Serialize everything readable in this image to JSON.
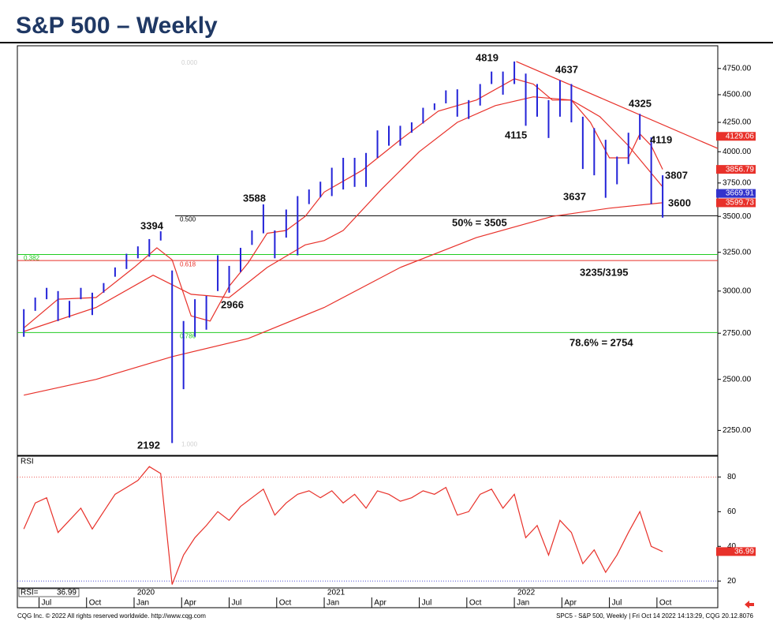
{
  "chart_data": [
    {
      "type": "hilo",
      "title": "S&P 500 – Weekly",
      "log_scale": true,
      "color": "#2323d8",
      "x": [
        2019.42,
        2019.48,
        2019.54,
        2019.6,
        2019.66,
        2019.72,
        2019.78,
        2019.84,
        2019.9,
        2019.96,
        2020.02,
        2020.08,
        2020.14,
        2020.2,
        2020.26,
        2020.32,
        2020.38,
        2020.44,
        2020.5,
        2020.56,
        2020.62,
        2020.68,
        2020.74,
        2020.8,
        2020.86,
        2020.92,
        2020.98,
        2021.04,
        2021.1,
        2021.16,
        2021.22,
        2021.28,
        2021.34,
        2021.4,
        2021.46,
        2021.52,
        2021.58,
        2021.64,
        2021.7,
        2021.76,
        2021.82,
        2021.88,
        2021.94,
        2022.0,
        2022.06,
        2022.12,
        2022.18,
        2022.24,
        2022.3,
        2022.36,
        2022.42,
        2022.48,
        2022.54,
        2022.6,
        2022.66,
        2022.72,
        2022.78
      ],
      "high": [
        2890,
        2960,
        3020,
        3000,
        2940,
        3020,
        2990,
        3050,
        3150,
        3240,
        3290,
        3340,
        3394,
        3130,
        2820,
        2950,
        2970,
        3230,
        3160,
        3280,
        3400,
        3588,
        3400,
        3550,
        3650,
        3700,
        3760,
        3870,
        3950,
        3950,
        3990,
        4180,
        4220,
        4220,
        4250,
        4380,
        4420,
        4540,
        4550,
        4450,
        4600,
        4720,
        4720,
        4819,
        4700,
        4600,
        4450,
        4637,
        4600,
        4300,
        4200,
        4100,
        3960,
        4160,
        4325,
        4120,
        3810
      ],
      "low": [
        2730,
        2880,
        2950,
        2820,
        2840,
        2950,
        2855,
        2990,
        3090,
        3140,
        3210,
        3220,
        3330,
        2192,
        2450,
        2730,
        2770,
        3000,
        2990,
        3120,
        3300,
        3380,
        3210,
        3350,
        3230,
        3590,
        3640,
        3650,
        3700,
        3720,
        3720,
        3950,
        4050,
        4050,
        4160,
        4240,
        4360,
        4420,
        4300,
        4280,
        4400,
        4600,
        4500,
        4600,
        4220,
        4300,
        4115,
        4300,
        4250,
        3860,
        3810,
        3637,
        3740,
        3900,
        4100,
        3590,
        3491
      ],
      "lines": [
        {
          "color": "#e8312a",
          "x": [
            2019.42,
            2019.6,
            2019.8,
            2020.0,
            2020.12,
            2020.2,
            2020.3,
            2020.4,
            2020.5,
            2020.6,
            2020.7,
            2020.8,
            2020.9,
            2021.0,
            2021.2,
            2021.4,
            2021.6,
            2021.8,
            2022.0,
            2022.1,
            2022.2,
            2022.3,
            2022.4,
            2022.5,
            2022.6,
            2022.66,
            2022.72,
            2022.78
          ],
          "values": [
            2780,
            2950,
            2960,
            3150,
            3280,
            3200,
            2850,
            2820,
            3030,
            3180,
            3380,
            3400,
            3500,
            3680,
            3850,
            4100,
            4350,
            4450,
            4650,
            4600,
            4450,
            4450,
            4250,
            3950,
            3950,
            4150,
            4050,
            3857
          ]
        },
        {
          "color": "#e8312a",
          "x": [
            2019.42,
            2019.8,
            2020.1,
            2020.3,
            2020.5,
            2020.7,
            2020.9,
            2021.0,
            2021.1,
            2021.3,
            2021.5,
            2021.7,
            2021.9,
            2022.1,
            2022.3,
            2022.45,
            2022.6,
            2022.78
          ],
          "values": [
            2760,
            2900,
            3100,
            2980,
            2960,
            3150,
            3300,
            3330,
            3400,
            3700,
            4000,
            4250,
            4400,
            4480,
            4450,
            4300,
            4050,
            3720
          ]
        },
        {
          "color": "#e8312a",
          "x": [
            2019.42,
            2019.8,
            2020.2,
            2020.6,
            2021.0,
            2021.4,
            2021.8,
            2022.2,
            2022.5,
            2022.78
          ],
          "values": [
            2420,
            2500,
            2620,
            2720,
            2900,
            3150,
            3350,
            3500,
            3560,
            3600
          ]
        },
        {
          "color": "#e8312a",
          "x": [
            2022.01,
            2023.07
          ],
          "values": [
            4819,
            4027
          ]
        }
      ],
      "levels": [
        {
          "value": 4819,
          "label": "0.000",
          "color": "#d0d0d0",
          "line": false
        },
        {
          "value": 3235,
          "label": "0.382",
          "color": "#22cc22",
          "line": true
        },
        {
          "value": 3505,
          "label": "0.500",
          "color": "#000000",
          "line": true
        },
        {
          "value": 3195,
          "label": "0.618",
          "color": "#e8312a",
          "line": true
        },
        {
          "value": 2754,
          "label": "0.786",
          "color": "#22cc22",
          "line": true
        },
        {
          "value": 2192,
          "label": "1.000",
          "color": "#d0d0d0",
          "line": false
        }
      ],
      "annotations": [
        "4819",
        "4637",
        "4325",
        "4115",
        "4119",
        "3807",
        "3600",
        "3637",
        "3588",
        "3394",
        "2966",
        "2192",
        "50% = 3505",
        "3235/3195",
        "78.6% = 2754"
      ],
      "price_tags": [
        {
          "value": 4129.06,
          "color": "#e8312a"
        },
        {
          "value": 3856.79,
          "color": "#e8312a"
        },
        {
          "value": 3669.91,
          "color": "#3333cc"
        },
        {
          "value": 3599.73,
          "color": "#e8312a"
        }
      ],
      "xlim": [
        2019.386,
        2023.07
      ],
      "ylim": [
        2137,
        4978
      ],
      "yticks": [
        {
          "value": 2250,
          "label": "2250.00"
        },
        {
          "value": 2500,
          "label": "2500.00"
        },
        {
          "value": 2750,
          "label": "2750.00"
        },
        {
          "value": 3000,
          "label": "3000.00"
        },
        {
          "value": 3250,
          "label": "3250.00"
        },
        {
          "value": 3500,
          "label": "3500.00"
        },
        {
          "value": 3750,
          "label": "3750.00"
        },
        {
          "value": 4000,
          "label": "4000.00"
        },
        {
          "value": 4250,
          "label": "4250.00"
        },
        {
          "value": 4500,
          "label": "4500.00"
        },
        {
          "value": 4750,
          "label": "4750.00"
        }
      ]
    },
    {
      "type": "line",
      "title": "RSI",
      "value_caption": "RSI=",
      "color": "#e8312a",
      "x": [
        2019.42,
        2019.48,
        2019.54,
        2019.6,
        2019.66,
        2019.72,
        2019.78,
        2019.84,
        2019.9,
        2019.96,
        2020.02,
        2020.08,
        2020.14,
        2020.2,
        2020.26,
        2020.32,
        2020.38,
        2020.44,
        2020.5,
        2020.56,
        2020.62,
        2020.68,
        2020.74,
        2020.8,
        2020.86,
        2020.92,
        2020.98,
        2021.04,
        2021.1,
        2021.16,
        2021.22,
        2021.28,
        2021.34,
        2021.4,
        2021.46,
        2021.52,
        2021.58,
        2021.64,
        2021.7,
        2021.76,
        2021.82,
        2021.88,
        2021.94,
        2022.0,
        2022.06,
        2022.12,
        2022.18,
        2022.24,
        2022.3,
        2022.36,
        2022.42,
        2022.48,
        2022.54,
        2022.6,
        2022.66,
        2022.72,
        2022.78
      ],
      "values": [
        50,
        65,
        68,
        48,
        55,
        62,
        50,
        60,
        70,
        74,
        78,
        86,
        82,
        18,
        35,
        45,
        52,
        60,
        55,
        63,
        68,
        73,
        58,
        65,
        70,
        72,
        68,
        72,
        65,
        70,
        62,
        72,
        70,
        66,
        68,
        72,
        70,
        74,
        58,
        60,
        70,
        73,
        62,
        70,
        45,
        52,
        35,
        55,
        48,
        30,
        38,
        25,
        35,
        48,
        60,
        40,
        36.99
      ],
      "ref_lines": [
        {
          "value": 80,
          "color": "#e8312a"
        },
        {
          "value": 20,
          "color": "#3333cc"
        }
      ],
      "xlim": [
        2019.386,
        2023.07
      ],
      "ylim": [
        16,
        92
      ],
      "yticks": [
        20,
        40,
        60,
        80
      ],
      "xticks": [
        {
          "value": 2019.5,
          "label": "Jul"
        },
        {
          "value": 2019.75,
          "label": "Oct"
        },
        {
          "value": 2020,
          "label": "Jan"
        },
        {
          "value": 2020.25,
          "label": "Apr"
        },
        {
          "value": 2020.5,
          "label": "Jul"
        },
        {
          "value": 2020.75,
          "label": "Oct"
        },
        {
          "value": 2021,
          "label": "Jan"
        },
        {
          "value": 2021.25,
          "label": "Apr"
        },
        {
          "value": 2021.5,
          "label": "Jul"
        },
        {
          "value": 2021.75,
          "label": "Oct"
        },
        {
          "value": 2022,
          "label": "Jan"
        },
        {
          "value": 2022.25,
          "label": "Apr"
        },
        {
          "value": 2022.5,
          "label": "Jul"
        },
        {
          "value": 2022.75,
          "label": "Oct"
        }
      ],
      "year_labels": [
        {
          "value": 2020,
          "label": "2020"
        },
        {
          "value": 2021,
          "label": "2021"
        },
        {
          "value": 2022,
          "label": "2022"
        }
      ]
    }
  ],
  "footer": {
    "left": "CQG Inc. © 2022 All rights reserved worldwide. http://www.cqg.com",
    "right": "SPC5 - S&P 500, Weekly | Fri Oct 14 2022 14:13:29, CQG 20.12.8076"
  }
}
